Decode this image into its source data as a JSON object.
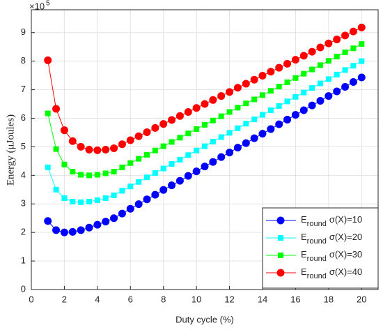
{
  "chart_data": {
    "type": "line",
    "xlabel": "Duty cycle (%)",
    "ylabel": "Energy (μJoules)",
    "y_multiplier": "×10",
    "y_multiplier_exponent": "5",
    "legend_prefix": "E",
    "legend_subscript": "round",
    "legend": "lower right",
    "grid": true,
    "xlim": [
      0,
      21
    ],
    "ylim": [
      0,
      9.8
    ],
    "xticks": [
      0,
      2,
      4,
      6,
      8,
      10,
      12,
      14,
      16,
      18,
      20
    ],
    "yticks": [
      0,
      1,
      2,
      3,
      4,
      5,
      6,
      7,
      8,
      9
    ],
    "x": [
      1,
      1.5,
      2,
      2.5,
      3,
      3.5,
      4,
      4.5,
      5,
      5.5,
      6,
      6.5,
      7,
      7.5,
      8,
      8.5,
      9,
      9.5,
      10,
      10.5,
      11,
      11.5,
      12,
      12.5,
      13,
      13.5,
      14,
      14.5,
      15,
      15.5,
      16,
      16.5,
      17,
      17.5,
      18,
      18.5,
      19,
      19.5,
      20
    ],
    "series": [
      {
        "name": "σ(X)=10",
        "color": "#0000ff",
        "marker": "circle",
        "values": [
          2.4,
          2.08,
          2.0,
          2.02,
          2.08,
          2.17,
          2.27,
          2.38,
          2.5,
          2.66,
          2.83,
          2.99,
          3.16,
          3.32,
          3.49,
          3.65,
          3.81,
          3.98,
          4.14,
          4.31,
          4.47,
          4.64,
          4.8,
          4.97,
          5.13,
          5.3,
          5.46,
          5.62,
          5.79,
          5.95,
          6.12,
          6.28,
          6.45,
          6.61,
          6.78,
          6.94,
          7.1,
          7.27,
          7.43
        ]
      },
      {
        "name": "σ(X)=20",
        "color": "#00ffff",
        "marker": "square",
        "values": [
          4.28,
          3.5,
          3.2,
          3.08,
          3.06,
          3.08,
          3.13,
          3.2,
          3.3,
          3.46,
          3.61,
          3.77,
          3.93,
          4.08,
          4.24,
          4.4,
          4.55,
          4.71,
          4.87,
          5.02,
          5.18,
          5.34,
          5.49,
          5.65,
          5.81,
          5.96,
          6.12,
          6.28,
          6.43,
          6.59,
          6.75,
          6.9,
          7.06,
          7.22,
          7.37,
          7.53,
          7.69,
          7.84,
          8.0
        ]
      },
      {
        "name": "σ(X)=30",
        "color": "#00ff00",
        "marker": "square",
        "values": [
          6.17,
          4.92,
          4.38,
          4.13,
          4.02,
          4.0,
          4.02,
          4.07,
          4.13,
          4.28,
          4.43,
          4.58,
          4.72,
          4.87,
          5.02,
          5.17,
          5.32,
          5.47,
          5.62,
          5.77,
          5.92,
          6.07,
          6.22,
          6.37,
          6.52,
          6.66,
          6.81,
          6.96,
          7.11,
          7.26,
          7.41,
          7.56,
          7.71,
          7.86,
          8.01,
          8.16,
          8.31,
          8.45,
          8.6
        ]
      },
      {
        "name": "σ(X)=40",
        "color": "#ff0000",
        "marker": "circle",
        "values": [
          8.03,
          6.33,
          5.58,
          5.2,
          5.0,
          4.9,
          4.88,
          4.9,
          4.95,
          5.09,
          5.23,
          5.37,
          5.51,
          5.66,
          5.8,
          5.94,
          6.08,
          6.22,
          6.36,
          6.5,
          6.64,
          6.78,
          6.92,
          7.07,
          7.21,
          7.35,
          7.49,
          7.63,
          7.77,
          7.91,
          8.05,
          8.19,
          8.33,
          8.48,
          8.62,
          8.76,
          8.9,
          9.04,
          9.18
        ]
      }
    ]
  }
}
